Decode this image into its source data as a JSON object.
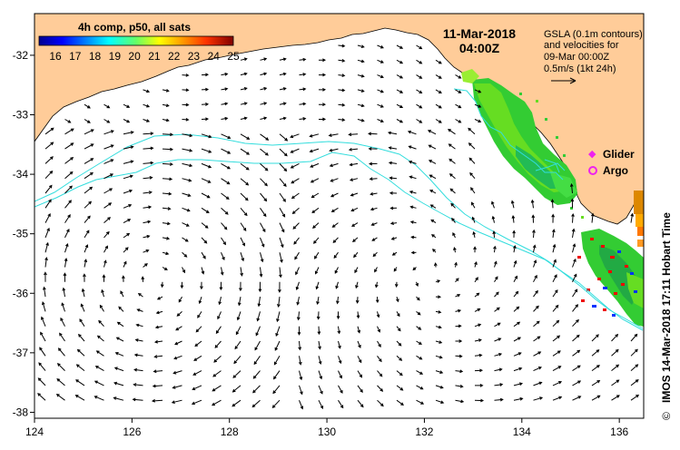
{
  "title": {
    "date": "11-Mar-2018",
    "time": "04:00Z"
  },
  "colorbar": {
    "title": "4h comp, p50, all sats",
    "min": 16,
    "max": 25,
    "tick_labels": [
      "16",
      "17",
      "18",
      "19",
      "20",
      "21",
      "22",
      "23",
      "24",
      "25"
    ],
    "colormap": "jet"
  },
  "info_text": {
    "line1": "GSLA (0.1m contours)",
    "line2": "and velocities for",
    "line3": "09-Mar 00:00Z",
    "line4": "0.5m/s (1kt 24h)"
  },
  "legend": {
    "glider_label": "Glider",
    "argo_label": "Argo",
    "glider_color": "#ee22ee",
    "argo_color": "#ee22ee"
  },
  "credit": "IMOS 14-Mar-2018 17:11 Hobart Time",
  "copyright_symbol": "©",
  "axes": {
    "x_ticks": [
      "124",
      "126",
      "128",
      "130",
      "132",
      "134",
      "136"
    ],
    "y_ticks": [
      "-32",
      "-33",
      "-34",
      "-35",
      "-36",
      "-37",
      "-38"
    ],
    "xlim": [
      124,
      136.5
    ],
    "ylim": [
      -38.1,
      -31.3
    ]
  },
  "colors": {
    "land": "#ffcc99",
    "contour": "#33dddd",
    "sst_green": "#33cc33",
    "arrows": "#000000"
  }
}
